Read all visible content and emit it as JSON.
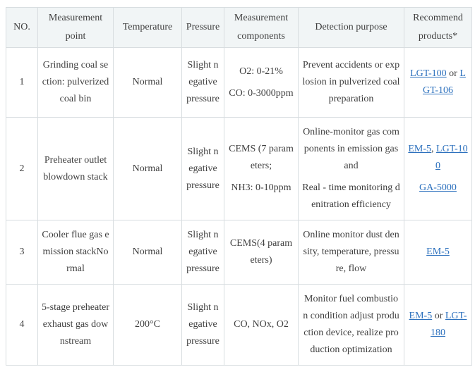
{
  "colors": {
    "link_blue": "#2c70bd",
    "header_background": "#f1f5f6",
    "table_border": "#d8dde0",
    "body_text": "#3f3f3f"
  },
  "table": {
    "headers": [
      "NO.",
      "Measurement point",
      "Temperature",
      "Pressure",
      "Measurement components",
      "Detection purpose",
      "Recommend products*"
    ],
    "rows": [
      {
        "no": "1",
        "point": "Grinding coal section: pulverized coal bin",
        "temperature": "Normal",
        "pressure": "Slight negative pressure",
        "components": [
          "O2: 0-21%",
          "CO: 0-3000ppm"
        ],
        "purpose": [
          "Prevent accidents or explosion in pulverized coal preparation"
        ],
        "products": [
          [
            {
              "t": "link",
              "text": "LGT-100"
            },
            {
              "t": "text",
              "text": " or "
            },
            {
              "t": "link",
              "text": "LGT-106"
            }
          ]
        ]
      },
      {
        "no": "2",
        "point": "Preheater outlet blowdown stack",
        "temperature": "Normal",
        "pressure": "Slight negative pressure",
        "components": [
          "CEMS (7 parameters;",
          "NH3: 0-10ppm"
        ],
        "purpose": [
          "Online-monitor gas components in emission gas and",
          "Real - time monitoring denitration efficiency"
        ],
        "products": [
          [
            {
              "t": "link",
              "text": "EM-5"
            },
            {
              "t": "text",
              "text": ", "
            },
            {
              "t": "link",
              "text": "LGT-100"
            }
          ],
          [
            {
              "t": "link",
              "text": "GA-5000"
            }
          ]
        ]
      },
      {
        "no": "3",
        "point": "Cooler flue gas emission stackNormal",
        "temperature": "Normal",
        "pressure": "Slight negative pressure",
        "components": [
          "CEMS(4 parameters)"
        ],
        "purpose": [
          "Online monitor dust density, temperature, pressure, flow"
        ],
        "products": [
          [
            {
              "t": "link",
              "text": "EM-5"
            }
          ]
        ]
      },
      {
        "no": "4",
        "point": "5-stage preheater exhaust gas downstream",
        "temperature": "200°C",
        "pressure": "Slight negative pressure",
        "components": [
          "CO, NOx, O2"
        ],
        "purpose": [
          "Monitor fuel combustion condition adjust production device, realize production optimization"
        ],
        "products": [
          [
            {
              "t": "link",
              "text": "EM-5"
            },
            {
              "t": "text",
              "text": " or "
            },
            {
              "t": "link",
              "text": "LGT-180"
            }
          ]
        ]
      }
    ]
  }
}
